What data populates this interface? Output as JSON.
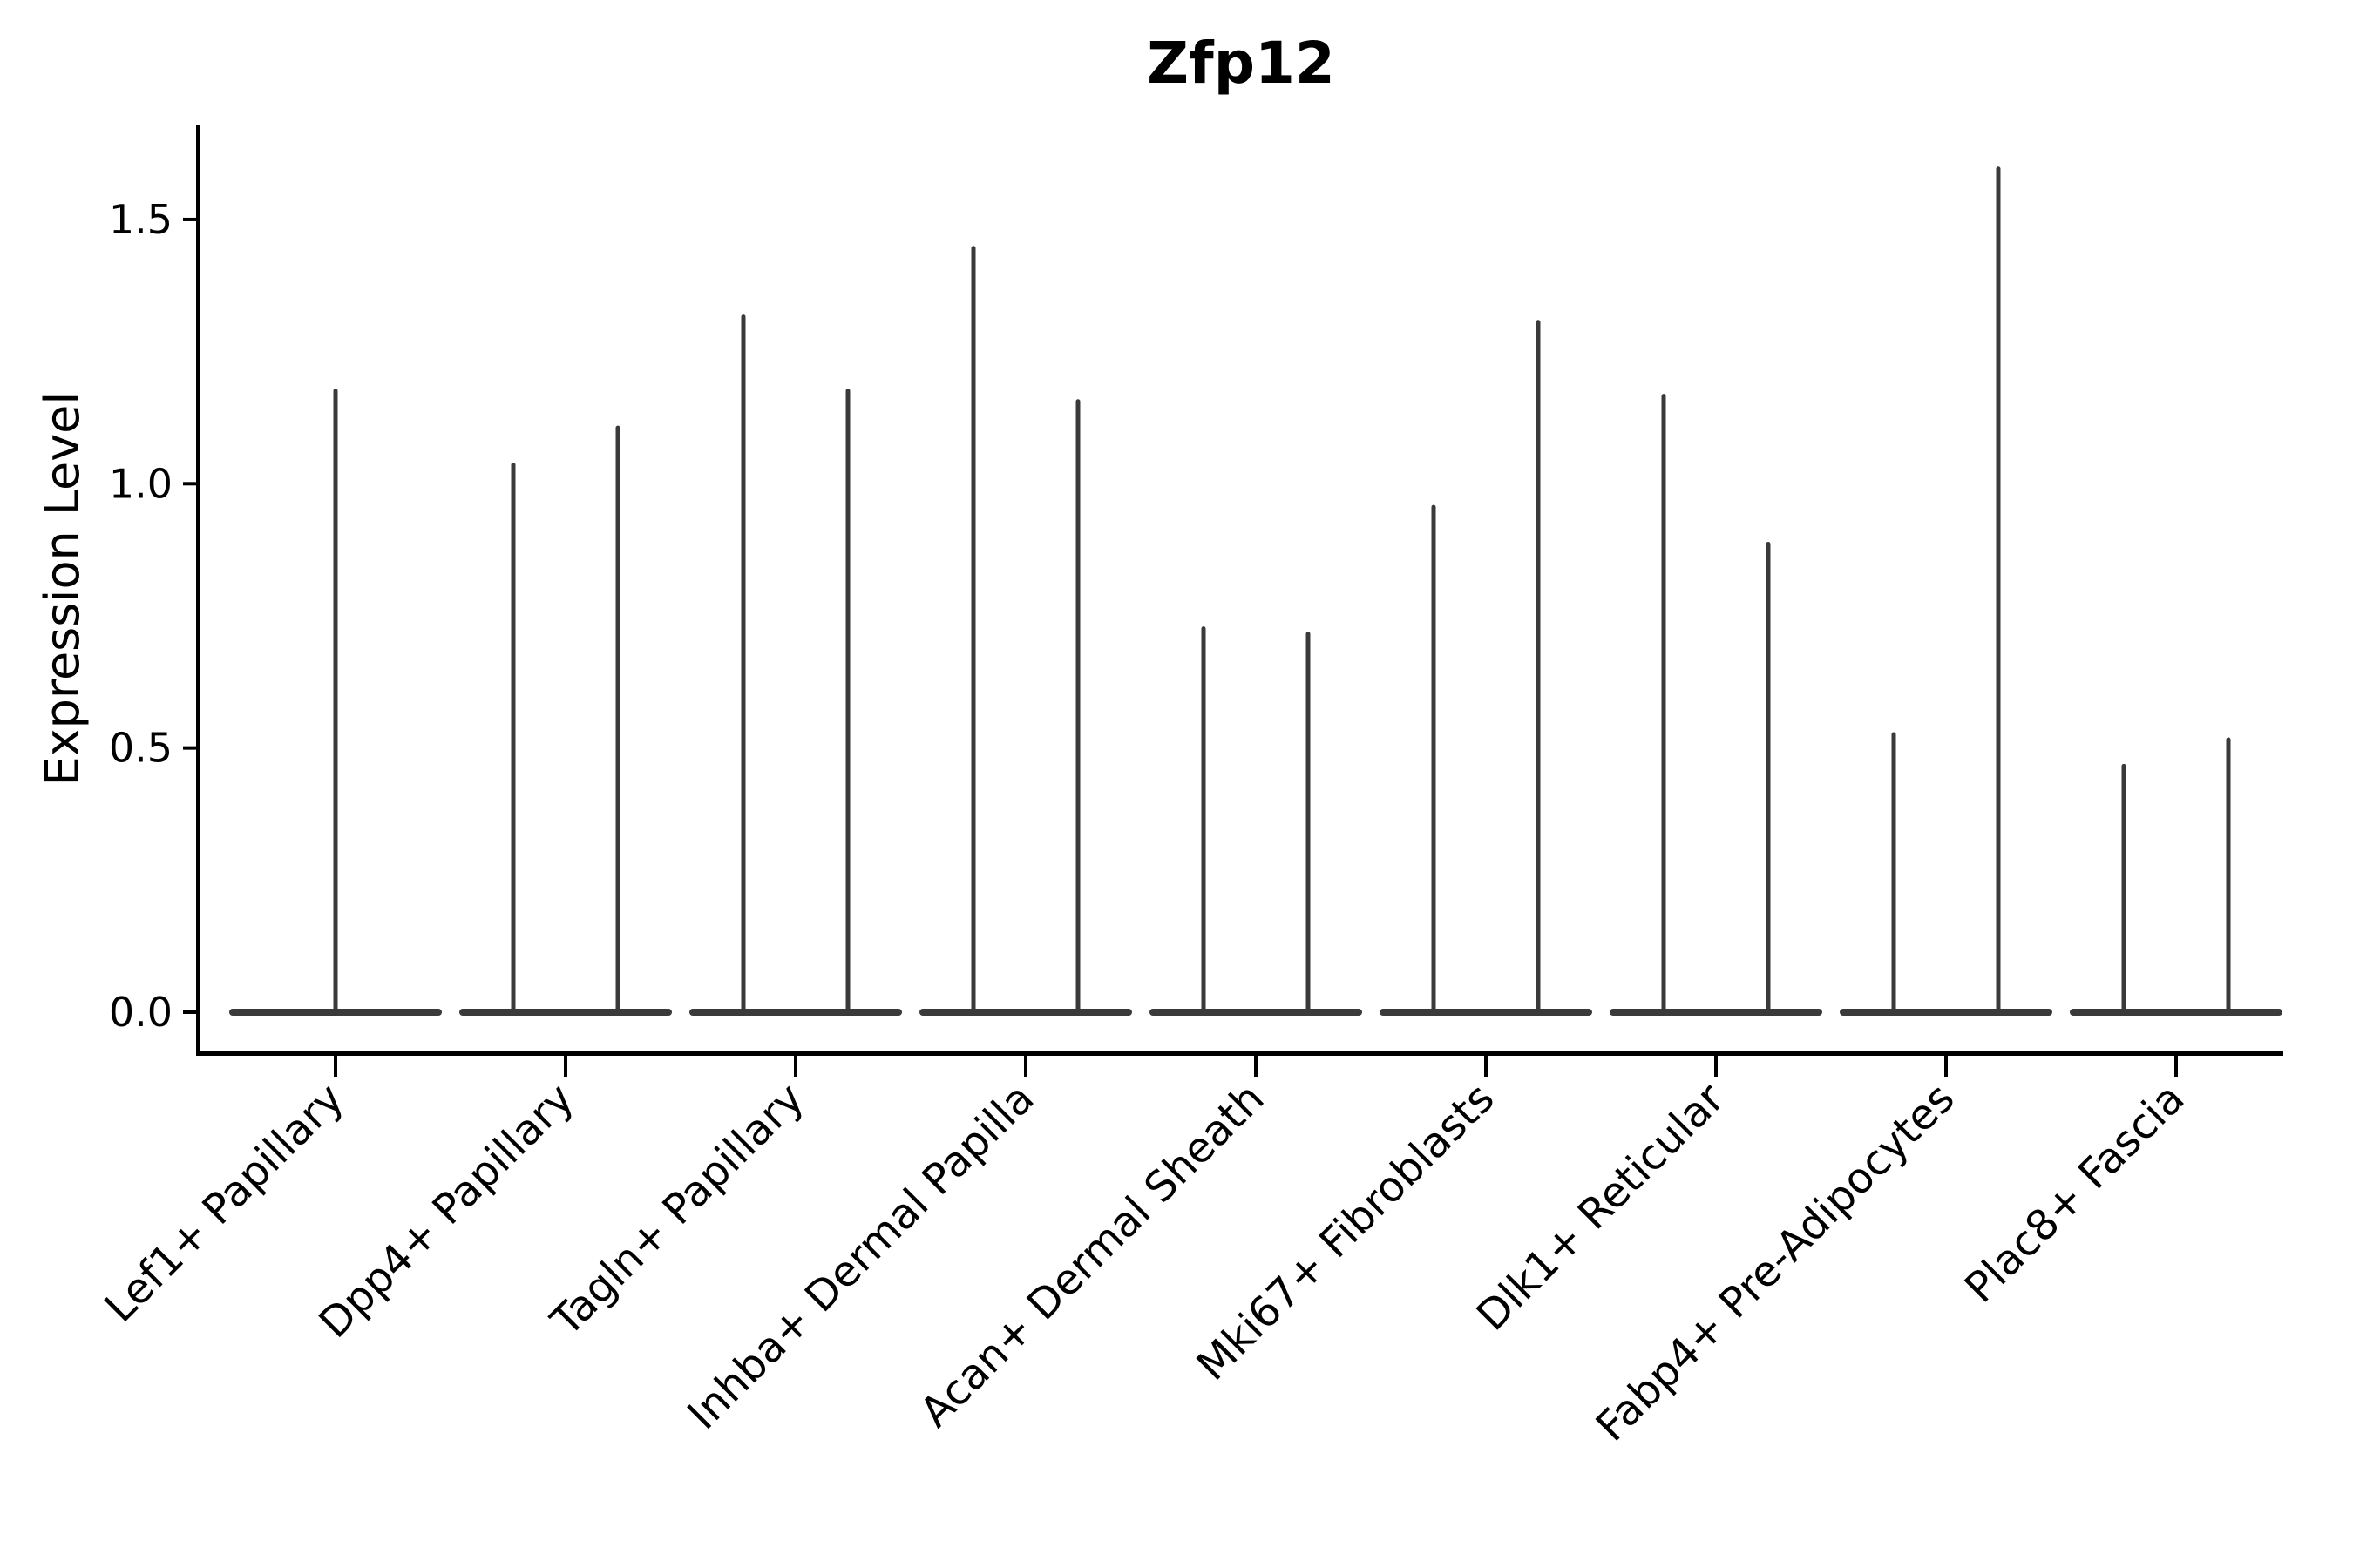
{
  "title": "Zfp12",
  "chart_data": {
    "type": "violin",
    "title": "Zfp12",
    "xlabel": "",
    "ylabel": "Expression Level",
    "ytick_labels": [
      "0.0",
      "0.5",
      "1.0",
      "1.5"
    ],
    "ytick_values": [
      0.0,
      0.5,
      1.0,
      1.5
    ],
    "ylim": [
      -0.08,
      1.68
    ],
    "grid": false,
    "legend": "none",
    "violin_fill_color": "#3A3A3A",
    "axis_color": "#000000",
    "categories": [
      "Lef1+ Papillary",
      "Dpp4+ Papillary",
      "Tagln+ Papillary",
      "Inhba+ Dermal Papilla",
      "Acan+ Dermal Sheath",
      "Mki67+ Fibroblasts",
      "Dlk1+ Reticular",
      "Fabp4+ Pre-Adipocytes",
      "Plac8+ Fascia"
    ],
    "violins": [
      {
        "category": "Lef1+ Papillary",
        "spike_maxima": [
          1.18
        ],
        "baseline_value": 0.0
      },
      {
        "category": "Dpp4+ Papillary",
        "spike_maxima": [
          1.04,
          1.11
        ],
        "baseline_value": 0.0
      },
      {
        "category": "Tagln+ Papillary",
        "spike_maxima": [
          1.32,
          1.18
        ],
        "baseline_value": 0.0
      },
      {
        "category": "Inhba+ Dermal Papilla",
        "spike_maxima": [
          1.45,
          1.16
        ],
        "baseline_value": 0.0
      },
      {
        "category": "Acan+ Dermal Sheath",
        "spike_maxima": [
          0.73,
          0.72
        ],
        "baseline_value": 0.0
      },
      {
        "category": "Mki67+ Fibroblasts",
        "spike_maxima": [
          0.96,
          1.31
        ],
        "baseline_value": 0.0
      },
      {
        "category": "Dlk1+ Reticular",
        "spike_maxima": [
          1.17,
          0.89
        ],
        "baseline_value": 0.0
      },
      {
        "category": "Fabp4+ Pre-Adipocytes",
        "spike_maxima": [
          0.53,
          1.6
        ],
        "baseline_value": 0.0
      },
      {
        "category": "Plac8+ Fascia",
        "spike_maxima": [
          0.47,
          0.52
        ],
        "baseline_value": 0.0
      }
    ]
  }
}
